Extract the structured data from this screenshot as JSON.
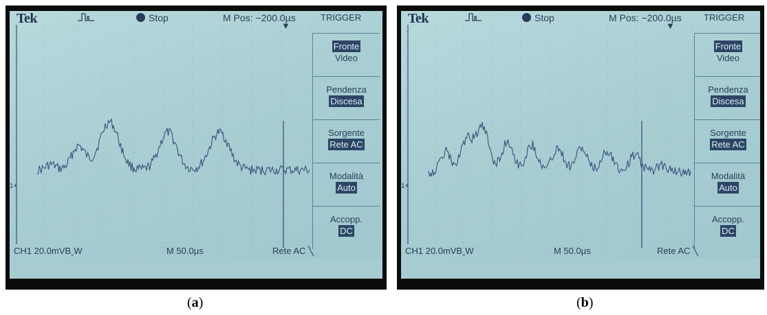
{
  "panels": [
    {
      "brand": "Tek",
      "status": "Stop",
      "mpos": "M Pos: −200.0µs",
      "trigger_title": "TRIGGER",
      "menu": [
        {
          "line1": "Fronte",
          "line2": "Video",
          "highlight": 1
        },
        {
          "line1": "Pendenza",
          "line2": "Discesa",
          "highlight": 2
        },
        {
          "line1": "Sorgente",
          "line2": "Rete AC",
          "highlight": 2
        },
        {
          "line1": "Modalità",
          "line2": "Auto",
          "highlight": 2
        },
        {
          "line1": "Accopp.",
          "line2": "DC",
          "highlight": 2
        }
      ],
      "ch_scale": "CH1  20.0mVBˬW",
      "timebase": "M 50.0µs",
      "trigger_source": "Rete AC ╲",
      "marker": "1+",
      "caption_letter": "a"
    },
    {
      "brand": "Tek",
      "status": "Stop",
      "mpos": "M Pos: −200.0µs",
      "trigger_title": "TRIGGER",
      "menu": [
        {
          "line1": "Fronte",
          "line2": "Video",
          "highlight": 1
        },
        {
          "line1": "Pendenza",
          "line2": "Discesa",
          "highlight": 2
        },
        {
          "line1": "Sorgente",
          "line2": "Rete AC",
          "highlight": 2
        },
        {
          "line1": "Modalità",
          "line2": "Auto",
          "highlight": 2
        },
        {
          "line1": "Accopp.",
          "line2": "DC",
          "highlight": 2
        }
      ],
      "ch_scale": "CH1  20.0mVBˬW",
      "timebase": "M 50.0µs",
      "trigger_source": "Rete AC ╲",
      "marker": "1+",
      "caption_letter": "b"
    }
  ],
  "colors": {
    "screen": "#aed2d6",
    "trace": "#3c4f7a",
    "text": "#2b3c58",
    "highlight": "#2d4566"
  },
  "icons": {
    "trigger_shape": "pulse-icon",
    "run_state": "stop-dot-icon",
    "trigger_position": "down-arrow-icon"
  }
}
